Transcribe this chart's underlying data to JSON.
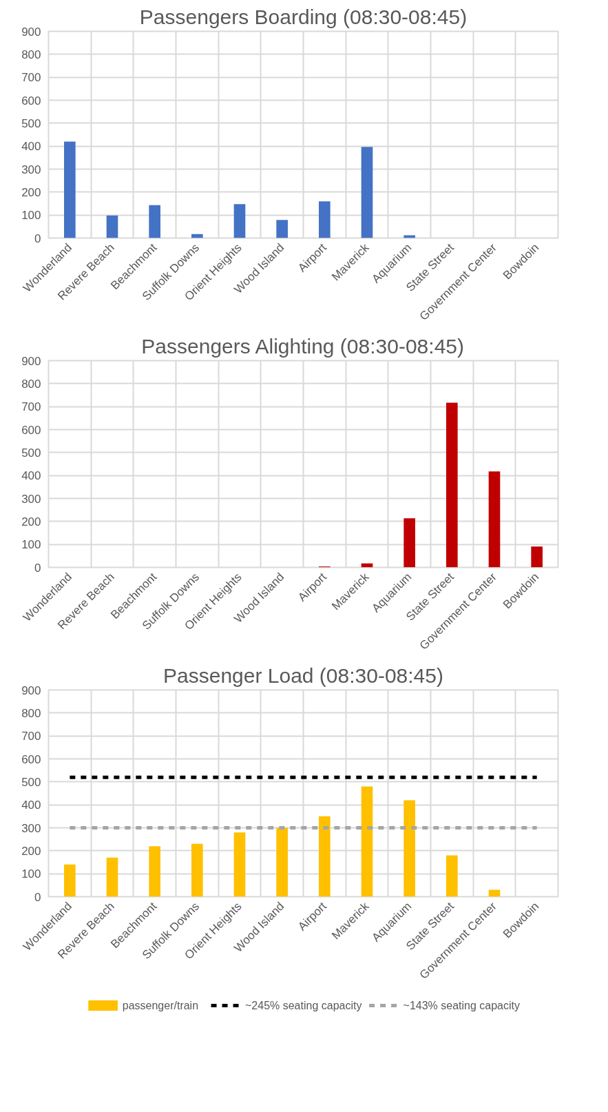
{
  "chart_data": [
    {
      "type": "bar",
      "title": "Passengers Boarding (08:30-08:45)",
      "categories": [
        "Wonderland",
        "Revere Beach",
        "Beachmont",
        "Suffolk Downs",
        "Orient Heights",
        "Wood Island",
        "Airport",
        "Maverick",
        "Aquarium",
        "State Street",
        "Government Center",
        "Bowdoin"
      ],
      "values": [
        420,
        98,
        143,
        17,
        148,
        79,
        160,
        397,
        12,
        0,
        0,
        0
      ],
      "color": "#4472c4",
      "ylim": [
        0,
        900
      ],
      "yticks": [
        0,
        100,
        200,
        300,
        400,
        500,
        600,
        700,
        800,
        900
      ],
      "grid": true
    },
    {
      "type": "bar",
      "title": "Passengers Alighting (08:30-08:45)",
      "categories": [
        "Wonderland",
        "Revere Beach",
        "Beachmont",
        "Suffolk Downs",
        "Orient Heights",
        "Wood Island",
        "Airport",
        "Maverick",
        "Aquarium",
        "State Street",
        "Government Center",
        "Bowdoin"
      ],
      "values": [
        0,
        0,
        0,
        0,
        0,
        0,
        4,
        17,
        214,
        717,
        418,
        91
      ],
      "color": "#c00000",
      "ylim": [
        0,
        900
      ],
      "yticks": [
        0,
        100,
        200,
        300,
        400,
        500,
        600,
        700,
        800,
        900
      ],
      "grid": true
    },
    {
      "type": "bar",
      "title": "Passenger Load (08:30-08:45)",
      "categories": [
        "Wonderland",
        "Revere Beach",
        "Beachmont",
        "Suffolk Downs",
        "Orient Heights",
        "Wood Island",
        "Airport",
        "Maverick",
        "Aquarium",
        "State Street",
        "Government Center",
        "Bowdoin"
      ],
      "series": [
        {
          "name": "passenger/train",
          "color": "#ffc000",
          "values": [
            140,
            170,
            220,
            230,
            280,
            300,
            350,
            480,
            420,
            180,
            30,
            0
          ]
        },
        {
          "name": "~245% seating capacity",
          "type": "line",
          "line_style": "dashed",
          "color": "#000000",
          "values": [
            520,
            520,
            520,
            520,
            520,
            520,
            520,
            520,
            520,
            520,
            520,
            520
          ]
        },
        {
          "name": "~143% seating capacity",
          "type": "line",
          "line_style": "dashed",
          "color": "#a5a5a5",
          "values": [
            300,
            300,
            300,
            300,
            300,
            300,
            300,
            300,
            300,
            300,
            300,
            300
          ]
        }
      ],
      "ylim": [
        0,
        900
      ],
      "yticks": [
        0,
        100,
        200,
        300,
        400,
        500,
        600,
        700,
        800,
        900
      ],
      "grid": true,
      "legend": "bottom"
    }
  ]
}
